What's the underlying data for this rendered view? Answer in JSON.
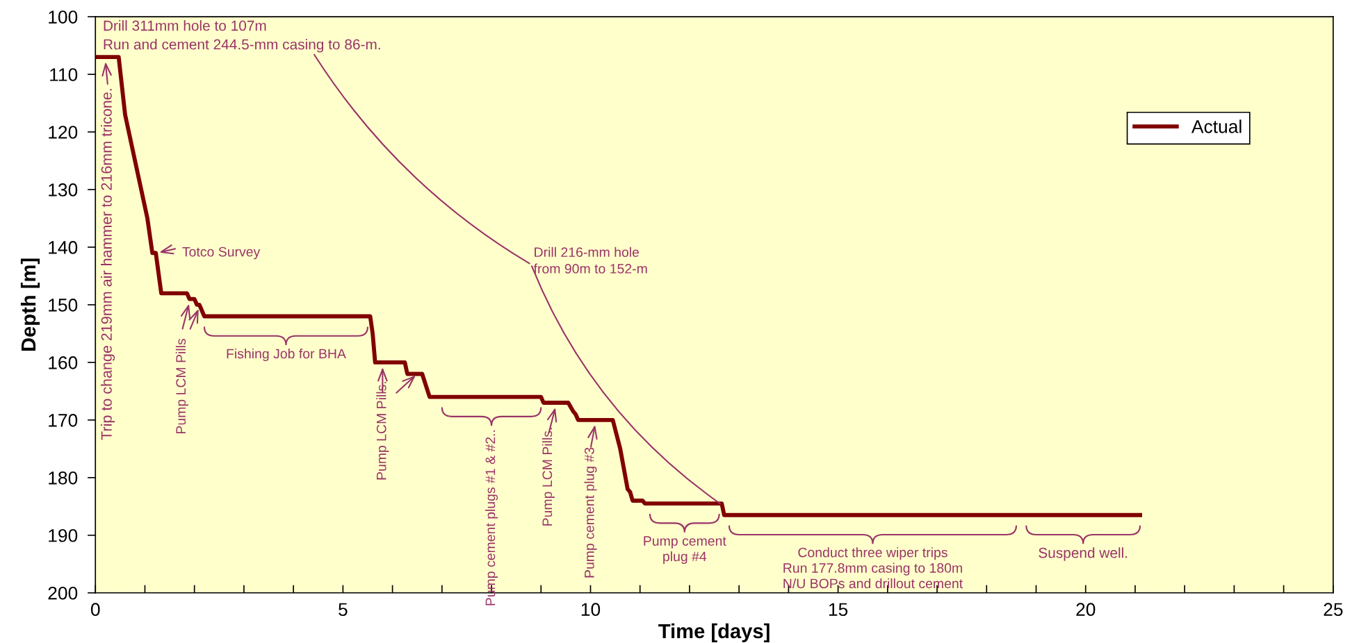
{
  "chart_data": {
    "type": "line",
    "xlabel": "Time [days]",
    "ylabel": "Depth [m]",
    "x": [
      0,
      0.47,
      0.6,
      1.05,
      1.15,
      1.22,
      1.33,
      1.85,
      1.9,
      2.0,
      2.05,
      2.1,
      2.2,
      5.55,
      5.6,
      5.65,
      6.25,
      6.3,
      6.6,
      6.75,
      9.0,
      9.05,
      9.55,
      9.65,
      9.7,
      9.75,
      10.45,
      10.6,
      10.75,
      10.8,
      10.85,
      11.05,
      11.1,
      12.65,
      12.7,
      21.1
    ],
    "series": [
      {
        "name": "Actual",
        "color": "#800000",
        "values": [
          107,
          107,
          117,
          135,
          141,
          141,
          148,
          148,
          149,
          149,
          150,
          150,
          152,
          152,
          155,
          160,
          160,
          162,
          162,
          166,
          166,
          167,
          167,
          168.5,
          169,
          170,
          170,
          175,
          182,
          182.5,
          184,
          184,
          184.5,
          184.5,
          186.5,
          186.5
        ]
      }
    ],
    "xlim": [
      0,
      25
    ],
    "ylim": [
      200,
      100
    ],
    "xticks": [
      0,
      {
        "value": 1,
        "label": null
      },
      {
        "value": 2,
        "label": null
      },
      {
        "value": 3,
        "label": null
      },
      {
        "value": 4,
        "label": null
      },
      5,
      {
        "value": 6,
        "label": null
      },
      {
        "value": 7,
        "label": null
      },
      {
        "value": 8,
        "label": null
      },
      {
        "value": 9,
        "label": null
      },
      10,
      {
        "value": 11,
        "label": null
      },
      {
        "value": 12,
        "label": null
      },
      {
        "value": 13,
        "label": null
      },
      {
        "value": 14,
        "label": null
      },
      15,
      {
        "value": 16,
        "label": null
      },
      {
        "value": 17,
        "label": null
      },
      {
        "value": 18,
        "label": null
      },
      {
        "value": 19,
        "label": null
      },
      20,
      {
        "value": 21,
        "label": null
      },
      {
        "value": 22,
        "label": null
      },
      {
        "value": 23,
        "label": null
      },
      {
        "value": 24,
        "label": null
      },
      25
    ],
    "yticks": [
      100,
      110,
      120,
      130,
      140,
      150,
      160,
      170,
      180,
      190,
      200
    ],
    "grid": false,
    "legend": "top right",
    "marker": "none",
    "line_style": "solid",
    "annotations": [
      "Drill 311mm hole to 107m\nRun and cement 244.5-mm casing to 86-m.",
      {
        "text": "Trip to change 219mm air hammer to 216mm tricone.",
        "x": 0.2,
        "y": 107.5
      },
      {
        "text": "Totco Survey",
        "x": 1.2,
        "y": 141
      },
      {
        "text": "Pump LCM Pills",
        "x": 1.9,
        "y": 149
      },
      {
        "text": "Fishing Job for BHA",
        "x": 3.85,
        "y": 152
      },
      {
        "text": "Pump LCM Pills.",
        "x": 5.8,
        "y": 160
      },
      {
        "text": "Pump cement plugs #1 & #2..",
        "x": 8.0,
        "y": 166
      },
      {
        "text": "Pump LCM Pills.",
        "x": 9.3,
        "y": 167
      },
      {
        "text": "Pump cement plug #3",
        "x": 10.1,
        "y": 170
      },
      {
        "text": "Pump cement\nplug #4",
        "x": 11.9,
        "y": 184.5
      },
      {
        "text": "Conduct three wiper trips\nRun 177.8mm casing to 180m\nN/U BOPs and drillout cement",
        "x": 15.7,
        "y": 186.5
      },
      {
        "text": "Suspend well.",
        "x": 19.95,
        "y": 186.5
      },
      {
        "text": "Drill 216-mm hole\nfrom 90m to 152-m",
        "x": 12.65,
        "y": 184.5
      }
    ]
  }
}
